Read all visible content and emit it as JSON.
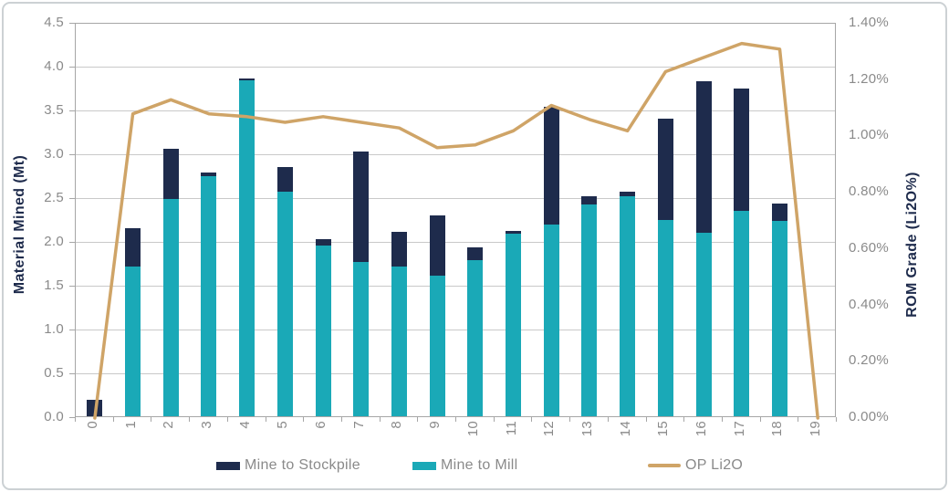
{
  "chart_data": {
    "type": "bar",
    "subtype": "stacked-bar-with-line-combo",
    "categories": [
      "0",
      "1",
      "2",
      "3",
      "4",
      "5",
      "6",
      "7",
      "8",
      "9",
      "10",
      "11",
      "12",
      "13",
      "14",
      "15",
      "16",
      "17",
      "18",
      "19"
    ],
    "series": [
      {
        "name": "Mine to Stockpile",
        "type": "bar",
        "axis": "left",
        "color": "#1e2b4c",
        "values": [
          0.19,
          0.44,
          0.57,
          0.04,
          0.02,
          0.28,
          0.07,
          1.26,
          0.39,
          0.69,
          0.15,
          0.04,
          1.34,
          0.09,
          0.05,
          1.16,
          1.73,
          1.4,
          0.2,
          0.0
        ]
      },
      {
        "name": "Mine to Mill",
        "type": "bar",
        "axis": "left",
        "color": "#1aa9b7",
        "values": [
          0.0,
          1.71,
          2.48,
          2.74,
          3.83,
          2.56,
          1.95,
          1.76,
          1.71,
          1.6,
          1.78,
          2.08,
          2.19,
          2.42,
          2.51,
          2.24,
          2.09,
          2.34,
          2.23,
          0.0
        ]
      },
      {
        "name": "OP Li2O",
        "type": "line",
        "axis": "right",
        "color": "#cfa467",
        "values": [
          0.0,
          1.08,
          1.13,
          1.08,
          1.07,
          1.05,
          1.07,
          1.05,
          1.03,
          0.96,
          0.97,
          1.02,
          1.11,
          1.06,
          1.02,
          1.23,
          1.28,
          1.33,
          1.31,
          0.0
        ]
      }
    ],
    "stack_order_note": "Mine to Mill (teal) is the bottom stack segment, Mine to Stockpile (navy) stacks on top",
    "title": "",
    "xlabel": "",
    "ylabel_left": "Material Mined (Mt)",
    "ylabel_right": "ROM Grade (Li2O%)",
    "y_left": {
      "min": 0,
      "max": 4.5,
      "step": 0.5,
      "tick_labels": [
        "0.0",
        "0.5",
        "1.0",
        "1.5",
        "2.0",
        "2.5",
        "3.0",
        "3.5",
        "4.0",
        "4.5"
      ]
    },
    "y_right": {
      "min": 0,
      "max": 1.4,
      "step": 0.2,
      "tick_labels": [
        "0.00%",
        "0.20%",
        "0.40%",
        "0.60%",
        "0.80%",
        "1.00%",
        "1.20%",
        "1.40%"
      ]
    },
    "grid": true,
    "gridline_interval_left_axis": 0.5,
    "legend_position": "bottom"
  },
  "colors": {
    "navy": "#1e2b4c",
    "teal": "#1aa9b7",
    "tan": "#cfa467",
    "gridline": "#c9c9c9",
    "plot_border": "#a6a6a6",
    "tick_text": "#8a8a8a",
    "frame_border": "#ccd1d4"
  }
}
